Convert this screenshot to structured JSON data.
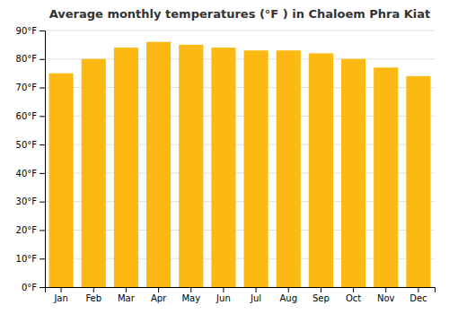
{
  "chart_data": {
    "type": "bar",
    "title": "Average monthly temperatures (°F ) in Chaloem Phra Kiat",
    "categories": [
      "Jan",
      "Feb",
      "Mar",
      "Apr",
      "May",
      "Jun",
      "Jul",
      "Aug",
      "Sep",
      "Oct",
      "Nov",
      "Dec"
    ],
    "values": [
      75,
      80,
      84,
      86,
      85,
      84,
      83,
      83,
      82,
      80,
      77,
      74
    ],
    "color": "#FDB913",
    "ylim": [
      0,
      90
    ],
    "yticks": [
      {
        "value": 0,
        "label": "0°F"
      },
      {
        "value": 10,
        "label": "10°F"
      },
      {
        "value": 20,
        "label": "20°F"
      },
      {
        "value": 30,
        "label": "30°F"
      },
      {
        "value": 40,
        "label": "40°F"
      },
      {
        "value": 50,
        "label": "50°F"
      },
      {
        "value": 60,
        "label": "60°F"
      },
      {
        "value": 70,
        "label": "70°F"
      },
      {
        "value": 80,
        "label": "80°F"
      },
      {
        "value": 90,
        "label": "90°F"
      }
    ],
    "grid": true
  }
}
